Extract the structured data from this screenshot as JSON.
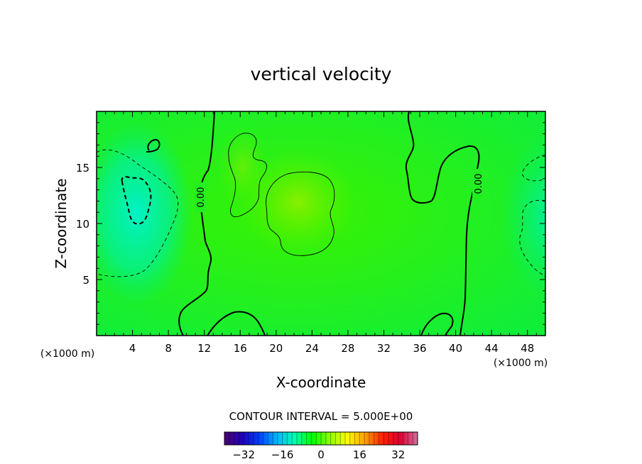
{
  "chart_data": {
    "type": "heatmap",
    "title": "vertical velocity",
    "xlabel": "X-coordinate",
    "ylabel": "Z-coordinate",
    "x_unit_left": "(×1000 m)",
    "x_unit_right": "(×1000 m)",
    "xlim": [
      0,
      50
    ],
    "ylim": [
      0,
      20
    ],
    "x_ticks": [
      4,
      8,
      12,
      16,
      20,
      24,
      28,
      32,
      36,
      40,
      44,
      48
    ],
    "y_ticks": [
      5,
      10,
      15
    ],
    "contour_interval_text": "CONTOUR INTERVAL = 5.000E+00",
    "contour_labels": [
      {
        "text": "0.00",
        "x": 11.5,
        "z": 12.5
      },
      {
        "text": "0.00",
        "x": 42.4,
        "z": 13.4
      }
    ],
    "colorbar": {
      "range": [
        -40,
        40
      ],
      "ticks": [
        -32,
        -16,
        0,
        16,
        32
      ],
      "colors": [
        "#4b0073",
        "#1f00b8",
        "#0040ff",
        "#00b8ff",
        "#00ffb0",
        "#00ff00",
        "#8cff00",
        "#ffff00",
        "#ffa000",
        "#ff2000",
        "#e00030",
        "#d070a0"
      ]
    },
    "field_features": [
      {
        "kind": "min",
        "x": 4.8,
        "z": 12,
        "value": -8
      },
      {
        "kind": "min",
        "x": 49,
        "z": 11,
        "value": -6
      },
      {
        "kind": "max",
        "x": 22,
        "z": 12,
        "value": 4
      },
      {
        "kind": "max",
        "x": 17,
        "z": 15,
        "value": 2
      }
    ]
  }
}
